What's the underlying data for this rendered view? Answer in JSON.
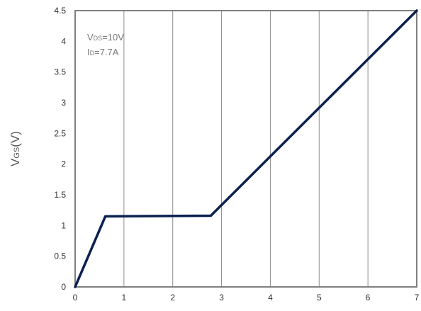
{
  "chart_data": {
    "type": "line",
    "title": "",
    "xlabel": "",
    "ylabel": {
      "main": "V",
      "sub": "GS",
      "tail": "(V)"
    },
    "xlim": [
      0,
      7
    ],
    "ylim": [
      0,
      4.5
    ],
    "x_ticks": [
      0,
      1,
      2,
      3,
      4,
      5,
      6,
      7
    ],
    "y_ticks": [
      "0",
      "0.5",
      "1",
      "1.5",
      "2",
      "2.5",
      "3",
      "3.5",
      "4",
      "4.5"
    ],
    "grid": {
      "vertical": true,
      "horizontal": false
    },
    "legend": "none",
    "annotations": [
      {
        "main": "V",
        "sub": "DS",
        "tail": "=10V"
      },
      {
        "main": "I",
        "sub": "D",
        "tail": "=7.7A"
      }
    ],
    "series": [
      {
        "color": "#0a2150",
        "points": [
          [
            0,
            0
          ],
          [
            0.62,
            1.15
          ],
          [
            2.78,
            1.16
          ],
          [
            7,
            4.5
          ]
        ]
      }
    ]
  },
  "colors": {
    "plot_border": "#7f7f7f",
    "grid": "#8c8c8c",
    "line": "#0a2150"
  }
}
